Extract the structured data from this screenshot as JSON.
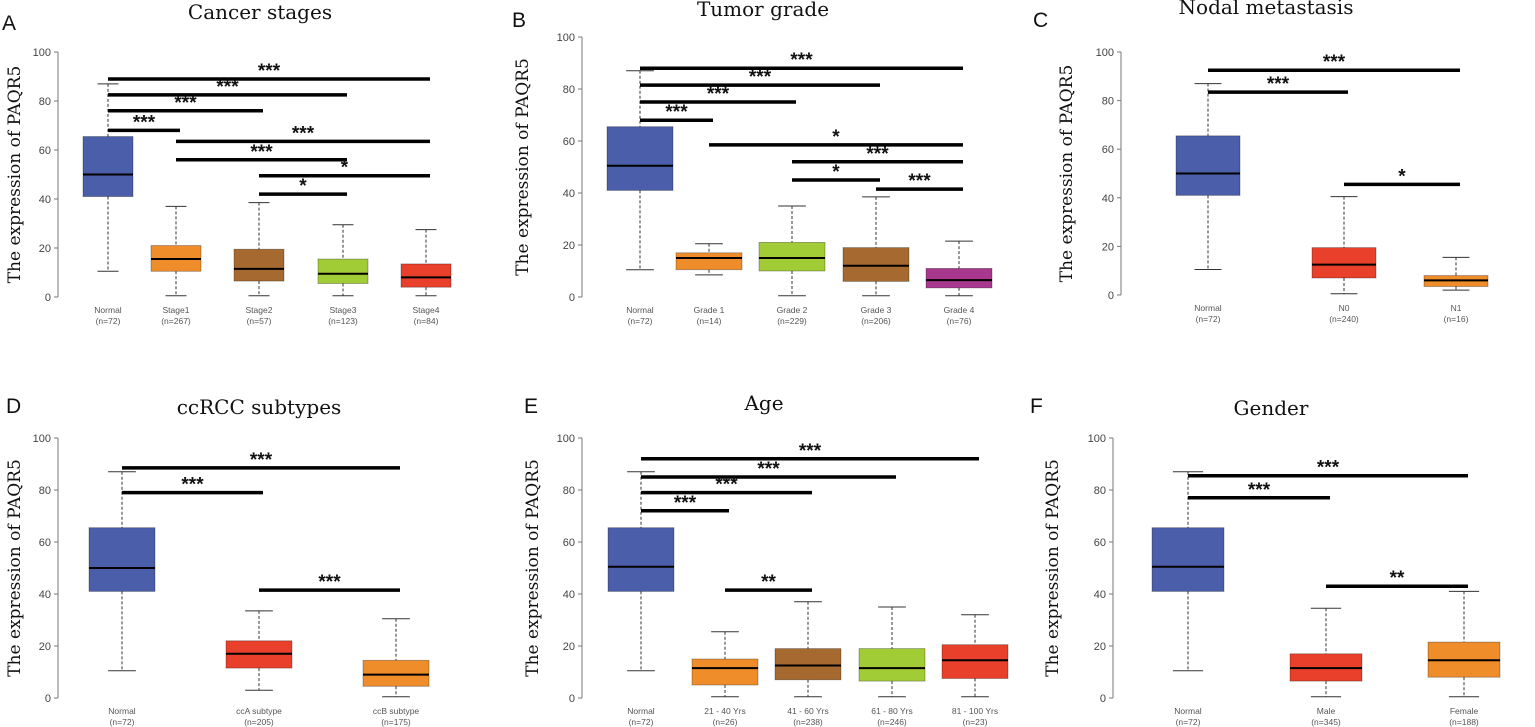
{
  "chart_data": [
    {
      "type": "box",
      "letter": "A",
      "title": "Cancer stages",
      "ylabel": "The expression of PAQR5",
      "ylim": [
        0,
        100
      ],
      "yticks": [
        0,
        20,
        40,
        60,
        80,
        100
      ],
      "categories": [
        "Normal",
        "Stage1",
        "Stage2",
        "Stage3",
        "Stage4"
      ],
      "n_labels": [
        "(n=72)",
        "(n=267)",
        "(n=57)",
        "(n=123)",
        "(n=84)"
      ],
      "colors": [
        "#4a5eaa",
        "#ef8d2b",
        "#a66a30",
        "#a2cc36",
        "#e8402b"
      ],
      "boxes": [
        {
          "min": 10.5,
          "q1": 41,
          "median": 50,
          "q3": 65.5,
          "max": 87
        },
        {
          "min": 0.5,
          "q1": 10.5,
          "median": 15.5,
          "q3": 21,
          "max": 37
        },
        {
          "min": 0.5,
          "q1": 6.5,
          "median": 11.5,
          "q3": 19.5,
          "max": 38.5
        },
        {
          "min": 0.5,
          "q1": 5.5,
          "median": 9.5,
          "q3": 15.5,
          "max": 29.5
        },
        {
          "min": 0.5,
          "q1": 4,
          "median": 8,
          "q3": 13.5,
          "max": 27.5
        }
      ],
      "comparisons": [
        {
          "from": 0,
          "to": 4,
          "y": 89,
          "label": "***"
        },
        {
          "from": 0,
          "to": 3,
          "y": 82.5,
          "label": "***"
        },
        {
          "from": 0,
          "to": 2,
          "y": 76,
          "label": "***"
        },
        {
          "from": 0,
          "to": 1,
          "y": 68,
          "label": "***"
        },
        {
          "from": 1,
          "to": 4,
          "y": 63.5,
          "label": "***"
        },
        {
          "from": 1,
          "to": 3,
          "y": 56,
          "label": "***"
        },
        {
          "from": 2,
          "to": 4,
          "y": 49.5,
          "label": "*"
        },
        {
          "from": 2,
          "to": 3,
          "y": 42,
          "label": "*"
        }
      ]
    },
    {
      "type": "box",
      "letter": "B",
      "title": "Tumor grade",
      "ylabel": "The expression of PAQR5",
      "ylim": [
        0,
        100
      ],
      "yticks": [
        0,
        20,
        40,
        60,
        80,
        100
      ],
      "categories": [
        "Normal",
        "Grade 1",
        "Grade 2",
        "Grade 3",
        "Grade 4"
      ],
      "n_labels": [
        "(n=72)",
        "(n=14)",
        "(n=229)",
        "(n=206)",
        "(n=76)"
      ],
      "colors": [
        "#4a5eaa",
        "#ef8d2b",
        "#a2cc36",
        "#a66a30",
        "#a7388d"
      ],
      "boxes": [
        {
          "min": 10.5,
          "q1": 41,
          "median": 50.5,
          "q3": 65.5,
          "max": 87
        },
        {
          "min": 8.5,
          "q1": 10.5,
          "median": 15,
          "q3": 17,
          "max": 20.5
        },
        {
          "min": 0.5,
          "q1": 10,
          "median": 15,
          "q3": 21,
          "max": 35
        },
        {
          "min": 0.5,
          "q1": 6,
          "median": 12,
          "q3": 19,
          "max": 38.5
        },
        {
          "min": 0.5,
          "q1": 3.5,
          "median": 6.5,
          "q3": 11,
          "max": 21.5
        }
      ],
      "comparisons": [
        {
          "from": 0,
          "to": 4,
          "y": 88,
          "label": "***"
        },
        {
          "from": 0,
          "to": 3,
          "y": 81.5,
          "label": "***"
        },
        {
          "from": 0,
          "to": 2,
          "y": 75,
          "label": "***"
        },
        {
          "from": 0,
          "to": 1,
          "y": 68,
          "label": "***"
        },
        {
          "from": 1,
          "to": 4,
          "y": 58.5,
          "label": "*"
        },
        {
          "from": 2,
          "to": 4,
          "y": 52,
          "label": "***"
        },
        {
          "from": 2,
          "to": 3,
          "y": 45,
          "label": "*"
        },
        {
          "from": 3,
          "to": 4,
          "y": 41.5,
          "label": "***"
        }
      ]
    },
    {
      "type": "box",
      "letter": "C",
      "title": "Nodal metastasis",
      "ylabel": "The expression of PAQR5",
      "ylim": [
        0,
        100
      ],
      "yticks": [
        0,
        20,
        40,
        60,
        80,
        100
      ],
      "categories": [
        "Normal",
        "N0",
        "N1"
      ],
      "n_labels": [
        "(n=72)",
        "(n=240)",
        "(n=16)"
      ],
      "colors": [
        "#4a5eaa",
        "#e8402b",
        "#ef8d2b"
      ],
      "boxes": [
        {
          "min": 10.5,
          "q1": 41,
          "median": 50,
          "q3": 65.5,
          "max": 87
        },
        {
          "min": 0.5,
          "q1": 7,
          "median": 12.5,
          "q3": 19.5,
          "max": 40.5
        },
        {
          "min": 2,
          "q1": 3.5,
          "median": 6,
          "q3": 8,
          "max": 15.5
        }
      ],
      "comparisons": [
        {
          "from": 0,
          "to": 2,
          "y": 92.5,
          "label": "***"
        },
        {
          "from": 0,
          "to": 1,
          "y": 83.5,
          "label": "***"
        },
        {
          "from": 1,
          "to": 2,
          "y": 45.5,
          "label": "*"
        }
      ]
    },
    {
      "type": "box",
      "letter": "D",
      "title": "ccRCC subtypes",
      "ylabel": "The expression of PAQR5",
      "ylim": [
        0,
        100
      ],
      "yticks": [
        0,
        20,
        40,
        60,
        80,
        100
      ],
      "categories": [
        "Normal",
        "ccA subtype",
        "ccB subtype"
      ],
      "n_labels": [
        "(n=72)",
        "(n=205)",
        "(n=175)"
      ],
      "colors": [
        "#4a5eaa",
        "#e8402b",
        "#ef8d2b"
      ],
      "boxes": [
        {
          "min": 10.5,
          "q1": 41,
          "median": 50,
          "q3": 65.5,
          "max": 87
        },
        {
          "min": 3,
          "q1": 11.5,
          "median": 17,
          "q3": 22,
          "max": 33.5
        },
        {
          "min": 0.5,
          "q1": 4.5,
          "median": 9,
          "q3": 14.5,
          "max": 30.5
        }
      ],
      "comparisons": [
        {
          "from": 0,
          "to": 2,
          "y": 88.5,
          "label": "***"
        },
        {
          "from": 0,
          "to": 1,
          "y": 79,
          "label": "***"
        },
        {
          "from": 1,
          "to": 2,
          "y": 41.5,
          "label": "***"
        }
      ]
    },
    {
      "type": "box",
      "letter": "E",
      "title": "Age",
      "ylabel": "The expression of PAQR5",
      "ylim": [
        0,
        100
      ],
      "yticks": [
        0,
        20,
        40,
        60,
        80,
        100
      ],
      "categories": [
        "Normal",
        "21 - 40 Yrs",
        "41 - 60 Yrs",
        "61 - 80 Yrs",
        "81 - 100 Yrs"
      ],
      "n_labels": [
        "(n=72)",
        "(n=26)",
        "(n=238)",
        "(n=246)",
        "(n=23)"
      ],
      "colors": [
        "#4a5eaa",
        "#ef8d2b",
        "#a66a30",
        "#a2cc36",
        "#e8402b"
      ],
      "boxes": [
        {
          "min": 10.5,
          "q1": 41,
          "median": 50.5,
          "q3": 65.5,
          "max": 87
        },
        {
          "min": 0.5,
          "q1": 5,
          "median": 11.5,
          "q3": 15,
          "max": 25.5
        },
        {
          "min": 0.5,
          "q1": 7,
          "median": 12.5,
          "q3": 19,
          "max": 37
        },
        {
          "min": 0.5,
          "q1": 6.5,
          "median": 11.5,
          "q3": 19,
          "max": 35
        },
        {
          "min": 0.5,
          "q1": 7.5,
          "median": 14.5,
          "q3": 20.5,
          "max": 32
        }
      ],
      "comparisons": [
        {
          "from": 0,
          "to": 4,
          "y": 92,
          "label": "***"
        },
        {
          "from": 0,
          "to": 3,
          "y": 85,
          "label": "***"
        },
        {
          "from": 0,
          "to": 2,
          "y": 79,
          "label": "***"
        },
        {
          "from": 0,
          "to": 1,
          "y": 72,
          "label": "***"
        },
        {
          "from": 1,
          "to": 2,
          "y": 41.5,
          "label": "**"
        }
      ]
    },
    {
      "type": "box",
      "letter": "F",
      "title": "Gender",
      "ylabel": "The expression of PAQR5",
      "ylim": [
        0,
        100
      ],
      "yticks": [
        0,
        20,
        40,
        60,
        80,
        100
      ],
      "categories": [
        "Normal",
        "Male",
        "Female"
      ],
      "n_labels": [
        "(n=72)",
        "(n=345)",
        "(n=188)"
      ],
      "colors": [
        "#4a5eaa",
        "#e8402b",
        "#ef8d2b"
      ],
      "boxes": [
        {
          "min": 10.5,
          "q1": 41,
          "median": 50.5,
          "q3": 65.5,
          "max": 87
        },
        {
          "min": 0.5,
          "q1": 6.5,
          "median": 11.5,
          "q3": 17,
          "max": 34.5
        },
        {
          "min": 0.5,
          "q1": 8,
          "median": 14.5,
          "q3": 21.5,
          "max": 41
        }
      ],
      "comparisons": [
        {
          "from": 0,
          "to": 2,
          "y": 85.5,
          "label": "***"
        },
        {
          "from": 0,
          "to": 1,
          "y": 77,
          "label": "***"
        },
        {
          "from": 1,
          "to": 2,
          "y": 43,
          "label": "**"
        }
      ]
    }
  ]
}
